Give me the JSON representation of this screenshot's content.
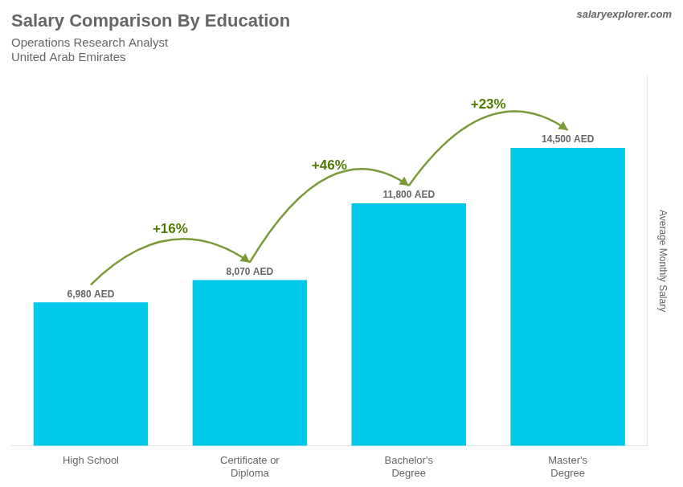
{
  "chart_data": {
    "type": "bar",
    "title": "Salary Comparison By Education",
    "subtitle": [
      "Operations Research Analyst",
      "United Arab Emirates"
    ],
    "ylabel": "Average Monthly Salary",
    "categories": [
      "High School",
      "Certificate or\nDiploma",
      "Bachelor's\nDegree",
      "Master's\nDegree"
    ],
    "values": [
      6980,
      8070,
      11800,
      14500
    ],
    "value_labels": [
      "6,980 AED",
      "8,070 AED",
      "11,800 AED",
      "14,500 AED"
    ],
    "data_labels": true,
    "color": "#00c8e8",
    "ylim": [
      0,
      18000
    ],
    "yticks": [],
    "tick_labels": "x",
    "grid": false,
    "annotations": [
      {
        "from": "High School",
        "to": "Certificate or\nDiploma",
        "text": "+16%"
      },
      {
        "from": "Certificate or\nDiploma",
        "to": "Bachelor's\nDegree",
        "text": "+46%"
      },
      {
        "from": "Bachelor's\nDegree",
        "to": "Master's\nDegree",
        "text": "+23%"
      },
      {
        "text": "salaryexplorer.com"
      }
    ]
  }
}
